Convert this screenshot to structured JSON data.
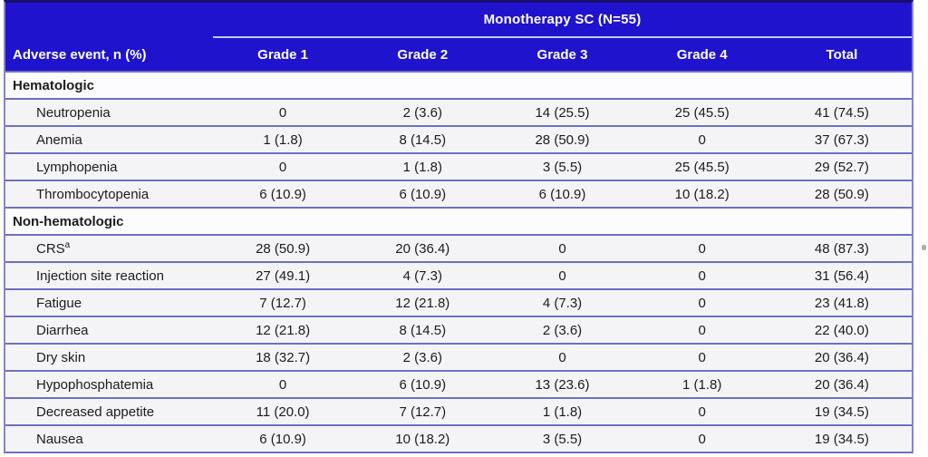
{
  "table": {
    "spanner": "Monotherapy SC (N=55)",
    "columns": [
      "Adverse event, n (%)",
      "Grade 1",
      "Grade 2",
      "Grade 3",
      "Grade 4",
      "Total"
    ],
    "sections": [
      {
        "label": "Hematologic",
        "rows": [
          {
            "name": "Neutropenia",
            "values": [
              "0",
              "2 (3.6)",
              "14 (25.5)",
              "25 (45.5)",
              "41 (74.5)"
            ]
          },
          {
            "name": "Anemia",
            "values": [
              "1 (1.8)",
              "8 (14.5)",
              "28 (50.9)",
              "0",
              "37 (67.3)"
            ]
          },
          {
            "name": "Lymphopenia",
            "values": [
              "0",
              "1 (1.8)",
              "3 (5.5)",
              "25 (45.5)",
              "29 (52.7)"
            ]
          },
          {
            "name": "Thrombocytopenia",
            "values": [
              "6 (10.9)",
              "6 (10.9)",
              "6 (10.9)",
              "10 (18.2)",
              "28 (50.9)"
            ]
          }
        ]
      },
      {
        "label": "Non-hematologic",
        "rows": [
          {
            "name": "CRS",
            "sup": "a",
            "values": [
              "28 (50.9)",
              "20 (36.4)",
              "0",
              "0",
              "48 (87.3)"
            ]
          },
          {
            "name": "Injection site reaction",
            "values": [
              "27 (49.1)",
              "4 (7.3)",
              "0",
              "0",
              "31 (56.4)"
            ]
          },
          {
            "name": "Fatigue",
            "values": [
              "7 (12.7)",
              "12 (21.8)",
              "4 (7.3)",
              "0",
              "23 (41.8)"
            ]
          },
          {
            "name": "Diarrhea",
            "values": [
              "12 (21.8)",
              "8 (14.5)",
              "2 (3.6)",
              "0",
              "22 (40.0)"
            ]
          },
          {
            "name": "Dry skin",
            "values": [
              "18 (32.7)",
              "2 (3.6)",
              "0",
              "0",
              "20 (36.4)"
            ]
          },
          {
            "name": "Hypophosphatemia",
            "values": [
              "0",
              "6 (10.9)",
              "13 (23.6)",
              "1 (1.8)",
              "20 (36.4)"
            ]
          },
          {
            "name": "Decreased appetite",
            "values": [
              "11 (20.0)",
              "7 (12.7)",
              "1 (1.8)",
              "0",
              "19 (34.5)"
            ]
          },
          {
            "name": "Nausea",
            "values": [
              "6 (10.9)",
              "10 (18.2)",
              "3 (5.5)",
              "0",
              "19 (34.5)"
            ]
          }
        ]
      }
    ],
    "colors": {
      "header_blue": "#2013cd",
      "row_separator": "#6f6fc2",
      "spanner_underline": "#c9c9f2",
      "top_border": "#17106e"
    }
  }
}
